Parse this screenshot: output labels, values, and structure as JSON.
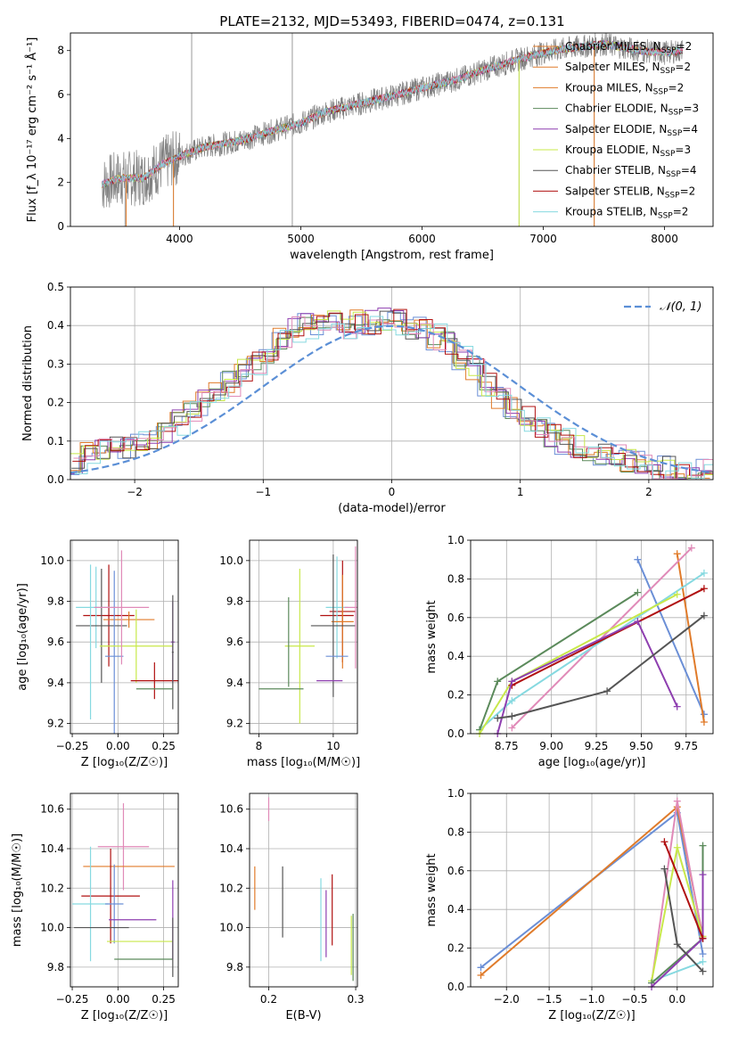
{
  "page_title": "PLATE=2132, MJD=53493, FIBERID=0474, z=0.131",
  "colors": {
    "gray": "#808080",
    "orange": "#e07b2a",
    "blue": "#6b8fd6",
    "green": "#5b8a5b",
    "purple": "#8e3fb0",
    "yellow": "#c8e84a",
    "dark": "#555555",
    "red": "#b01010",
    "cyan": "#86d9e0",
    "pink": "#e08ab8",
    "dashed": "#5b8fd6"
  },
  "chart_data": [
    {
      "id": "spectrum",
      "type": "line",
      "title": "PLATE=2132, MJD=53493, FIBERID=0474, z=0.131",
      "xlabel": "wavelength [Angstrom, rest frame]",
      "ylabel": "Flux [f_λ 10⁻¹⁷ erg cm⁻² s⁻¹ Å⁻¹]",
      "xlim": [
        3100,
        8400
      ],
      "ylim": [
        0,
        8.8
      ],
      "xticks": [
        "4000",
        "5000",
        "6000",
        "7000",
        "8000"
      ],
      "yticks": [
        "0",
        "2",
        "4",
        "6",
        "8"
      ],
      "grid": false,
      "legend_position": "top-right",
      "legend": [
        {
          "label": "Chabrier MILES, N",
          "sub": "SSP",
          "tail": "=2",
          "color": "orange"
        },
        {
          "label": "Salpeter MILES, N",
          "sub": "SSP",
          "tail": "=2",
          "color": "orange"
        },
        {
          "label": "Kroupa MILES, N",
          "sub": "SSP",
          "tail": "=2",
          "color": "orange"
        },
        {
          "label": "Chabrier ELODIE, N",
          "sub": "SSP",
          "tail": "=3",
          "color": "green"
        },
        {
          "label": "Salpeter ELODIE, N",
          "sub": "SSP",
          "tail": "=4",
          "color": "purple"
        },
        {
          "label": "Kroupa ELODIE, N",
          "sub": "SSP",
          "tail": "=3",
          "color": "yellow"
        },
        {
          "label": "Chabrier STELIB, N",
          "sub": "SSP",
          "tail": "=4",
          "color": "dark"
        },
        {
          "label": "Salpeter STELIB, N",
          "sub": "SSP",
          "tail": "=2",
          "color": "red"
        },
        {
          "label": "Kroupa STELIB, N",
          "sub": "SSP",
          "tail": "=2",
          "color": "cyan"
        }
      ],
      "continuum": [
        [
          3360,
          1.9
        ],
        [
          3500,
          2.2
        ],
        [
          3700,
          2.2
        ],
        [
          3850,
          2.8
        ],
        [
          4000,
          3.2
        ],
        [
          4200,
          3.6
        ],
        [
          4500,
          3.9
        ],
        [
          4800,
          4.4
        ],
        [
          5000,
          4.7
        ],
        [
          5200,
          5.2
        ],
        [
          5500,
          5.6
        ],
        [
          5800,
          6.0
        ],
        [
          6000,
          6.3
        ],
        [
          6300,
          6.7
        ],
        [
          6500,
          7.1
        ],
        [
          6800,
          7.6
        ],
        [
          7000,
          7.9
        ],
        [
          7200,
          8.1
        ],
        [
          7500,
          8.3
        ],
        [
          7800,
          8.0
        ],
        [
          8000,
          7.9
        ],
        [
          8150,
          8.0
        ]
      ],
      "spikes": [
        [
          4100,
          8.8
        ],
        [
          4930,
          8.8
        ],
        [
          3550,
          0.0
        ],
        [
          3950,
          0.0
        ],
        [
          4930,
          0.0
        ],
        [
          6800,
          0.0
        ],
        [
          7420,
          0.0
        ]
      ]
    },
    {
      "id": "residuals",
      "type": "line",
      "xlabel": "(data-model)/error",
      "ylabel": "Normed distribution",
      "xlim": [
        -2.5,
        2.5
      ],
      "ylim": [
        0,
        0.5
      ],
      "xticks": [
        "−2",
        "−1",
        "0",
        "1",
        "2"
      ],
      "yticks": [
        "0.0",
        "0.1",
        "0.2",
        "0.3",
        "0.4",
        "0.5"
      ],
      "grid": true,
      "legend_position": "top-right",
      "legend_label": "𝒩(0, 1)",
      "histogram_hint": [
        0.04,
        0.07,
        0.08,
        0.08,
        0.09,
        0.09,
        0.1,
        0.12,
        0.15,
        0.17,
        0.2,
        0.23,
        0.25,
        0.28,
        0.3,
        0.33,
        0.36,
        0.39,
        0.4,
        0.4,
        0.41,
        0.4,
        0.41,
        0.41,
        0.42,
        0.41,
        0.4,
        0.39,
        0.37,
        0.35,
        0.32,
        0.29,
        0.25,
        0.22,
        0.19,
        0.16,
        0.14,
        0.12,
        0.1,
        0.09,
        0.07,
        0.07,
        0.06,
        0.05,
        0.04,
        0.03,
        0.03,
        0.02,
        0.02,
        0.02
      ]
    },
    {
      "id": "age_vs_Z",
      "type": "scatter",
      "xlabel": "Z [log₁₀(Z/Z☉)]",
      "ylabel": "age  [log₁₀(age/yr)]",
      "xlim": [
        -0.26,
        0.33
      ],
      "ylim": [
        9.15,
        10.1
      ],
      "xticks": [
        "−0.25",
        "0.00",
        "0.25"
      ],
      "yticks": [
        "9.2",
        "9.4",
        "9.6",
        "9.8",
        "10.0"
      ],
      "grid": true,
      "points": [
        {
          "x": -0.05,
          "y": 9.73,
          "xerr": 0.14,
          "yerr": 0.25,
          "color": "red"
        },
        {
          "x": -0.12,
          "y": 9.77,
          "xerr": 0.11,
          "yerr": 0.2,
          "color": "cyan"
        },
        {
          "x": 0.06,
          "y": 9.71,
          "xerr": 0.14,
          "yerr": 0.04,
          "color": "orange"
        },
        {
          "x": -0.09,
          "y": 9.68,
          "xerr": 0.14,
          "yerr": 0.28,
          "color": "dark"
        },
        {
          "x": -0.02,
          "y": 9.53,
          "xerr": 0.05,
          "yerr": 0.42,
          "color": "blue"
        },
        {
          "x": 0.1,
          "y": 9.58,
          "xerr": 0.2,
          "yerr": 0.18,
          "color": "yellow"
        },
        {
          "x": 0.2,
          "y": 9.41,
          "xerr": 0.13,
          "yerr": 0.09,
          "color": "red"
        },
        {
          "x": 0.3,
          "y": 9.6,
          "xerr": 0.01,
          "yerr": 0.2,
          "color": "purple"
        },
        {
          "x": 0.3,
          "y": 9.55,
          "xerr": 0.005,
          "yerr": 0.28,
          "color": "dark"
        },
        {
          "x": 0.2,
          "y": 9.37,
          "xerr": 0.1,
          "yerr": 0.0,
          "color": "green"
        },
        {
          "x": 0.02,
          "y": 9.77,
          "xerr": 0.15,
          "yerr": 0.28,
          "color": "pink"
        },
        {
          "x": -0.15,
          "y": 9.6,
          "xerr": 0.0,
          "yerr": 0.38,
          "color": "cyan"
        }
      ]
    },
    {
      "id": "age_vs_mass",
      "type": "scatter",
      "xlabel": "mass [log₁₀(M/M☉)]",
      "ylabel": "",
      "xlim": [
        7.75,
        10.65
      ],
      "ylim": [
        9.15,
        10.1
      ],
      "xticks": [
        "8",
        "10"
      ],
      "yticks": [
        "9.2",
        "9.4",
        "9.6",
        "9.8",
        "10.0"
      ],
      "grid": true,
      "points": [
        {
          "x": 10.1,
          "y": 9.73,
          "xerr": 0.45,
          "yerr": 0.0,
          "color": "red"
        },
        {
          "x": 10.25,
          "y": 9.75,
          "xerr": 0.35,
          "yerr": 0.25,
          "color": "red"
        },
        {
          "x": 10.1,
          "y": 9.77,
          "xerr": 0.3,
          "yerr": 0.25,
          "color": "cyan"
        },
        {
          "x": 10.25,
          "y": 9.7,
          "xerr": 0.3,
          "yerr": 0.23,
          "color": "orange"
        },
        {
          "x": 10.0,
          "y": 9.68,
          "xerr": 0.6,
          "yerr": 0.35,
          "color": "dark"
        },
        {
          "x": 10.1,
          "y": 9.53,
          "xerr": 0.3,
          "yerr": 0.0,
          "color": "blue"
        },
        {
          "x": 9.1,
          "y": 9.58,
          "xerr": 0.4,
          "yerr": 0.38,
          "color": "yellow"
        },
        {
          "x": 9.9,
          "y": 9.41,
          "xerr": 0.35,
          "yerr": 0.0,
          "color": "purple"
        },
        {
          "x": 8.6,
          "y": 9.37,
          "xerr": 0.6,
          "yerr": 0.0,
          "color": "green"
        },
        {
          "x": 8.8,
          "y": 9.6,
          "xerr": 0.0,
          "yerr": 0.22,
          "color": "green"
        },
        {
          "x": 10.6,
          "y": 9.77,
          "xerr": 0.3,
          "yerr": 0.3,
          "color": "pink"
        }
      ]
    },
    {
      "id": "massweight_vs_age",
      "type": "line",
      "xlabel": "age  [log₁₀(age/yr)]",
      "ylabel": "mass weight",
      "xlim": [
        8.55,
        9.9
      ],
      "ylim": [
        0,
        1.0
      ],
      "xticks": [
        "8.75",
        "9.00",
        "9.25",
        "9.50",
        "9.75"
      ],
      "yticks": [
        "0.0",
        "0.2",
        "0.4",
        "0.6",
        "0.8",
        "1.0"
      ],
      "grid": true,
      "series": [
        {
          "color": "blue",
          "x": [
            9.48,
            9.85
          ],
          "y": [
            0.9,
            0.1
          ]
        },
        {
          "color": "orange",
          "x": [
            9.7,
            9.85
          ],
          "y": [
            0.93,
            0.06
          ]
        },
        {
          "color": "pink",
          "x": [
            8.78,
            9.78
          ],
          "y": [
            0.03,
            0.96
          ]
        },
        {
          "color": "cyan",
          "x": [
            8.6,
            8.78,
            9.85
          ],
          "y": [
            0.02,
            0.17,
            0.83
          ]
        },
        {
          "color": "green",
          "x": [
            8.6,
            8.7,
            9.48
          ],
          "y": [
            0.02,
            0.27,
            0.73
          ]
        },
        {
          "color": "yellow",
          "x": [
            8.6,
            8.78,
            9.7
          ],
          "y": [
            0.0,
            0.27,
            0.72
          ]
        },
        {
          "color": "red",
          "x": [
            8.78,
            9.85
          ],
          "y": [
            0.25,
            0.75
          ]
        },
        {
          "color": "purple",
          "x": [
            8.7,
            8.78,
            9.48,
            9.7
          ],
          "y": [
            0.0,
            0.27,
            0.58,
            0.14
          ]
        },
        {
          "color": "dark",
          "x": [
            8.7,
            8.78,
            9.31,
            9.85
          ],
          "y": [
            0.08,
            0.09,
            0.22,
            0.61
          ]
        }
      ]
    },
    {
      "id": "mass_vs_Z",
      "type": "scatter",
      "xlabel": "Z [log₁₀(Z/Z☉)]",
      "ylabel": "mass [log₁₀(M/M☉)]",
      "xlim": [
        -0.26,
        0.33
      ],
      "ylim": [
        9.7,
        10.68
      ],
      "xticks": [
        "−0.25",
        "0.00",
        "0.25"
      ],
      "yticks": [
        "9.8",
        "10.0",
        "10.2",
        "10.4",
        "10.6"
      ],
      "grid": true,
      "points": [
        {
          "x": 0.03,
          "y": 10.41,
          "xerr": 0.14,
          "yerr": 0.22,
          "color": "pink"
        },
        {
          "x": 0.06,
          "y": 10.31,
          "xerr": 0.25,
          "yerr": 0.0,
          "color": "orange"
        },
        {
          "x": -0.04,
          "y": 10.16,
          "xerr": 0.16,
          "yerr": 0.24,
          "color": "red"
        },
        {
          "x": -0.15,
          "y": 10.12,
          "xerr": 0.1,
          "yerr": 0.29,
          "color": "cyan"
        },
        {
          "x": -0.02,
          "y": 10.12,
          "xerr": 0.05,
          "yerr": 0.2,
          "color": "blue"
        },
        {
          "x": 0.08,
          "y": 10.04,
          "xerr": 0.13,
          "yerr": 0.0,
          "color": "purple"
        },
        {
          "x": -0.09,
          "y": 10.0,
          "xerr": 0.15,
          "yerr": 0.0,
          "color": "dark"
        },
        {
          "x": 0.12,
          "y": 9.93,
          "xerr": 0.18,
          "yerr": 0.0,
          "color": "yellow"
        },
        {
          "x": 0.14,
          "y": 9.84,
          "xerr": 0.16,
          "yerr": 0.0,
          "color": "green"
        },
        {
          "x": 0.3,
          "y": 10.04,
          "xerr": 0.0,
          "yerr": 0.2,
          "color": "purple"
        },
        {
          "x": 0.3,
          "y": 9.9,
          "xerr": 0.0,
          "yerr": 0.15,
          "color": "dark"
        }
      ]
    },
    {
      "id": "mass_vs_ebv",
      "type": "scatter",
      "xlabel": "E(B-V)",
      "ylabel": "",
      "xlim": [
        0.178,
        0.302
      ],
      "ylim": [
        9.7,
        10.68
      ],
      "xticks": [
        "0.2",
        "0.3"
      ],
      "yticks": [
        "9.8",
        "10.0",
        "10.2",
        "10.4",
        "10.6"
      ],
      "grid": true,
      "points": [
        {
          "x": 0.2,
          "y": 10.6,
          "xerr": 0.0,
          "yerr": 0.06,
          "color": "pink"
        },
        {
          "x": 0.184,
          "y": 10.2,
          "xerr": 0.0,
          "yerr": 0.11,
          "color": "orange"
        },
        {
          "x": 0.216,
          "y": 10.13,
          "xerr": 0.0,
          "yerr": 0.18,
          "color": "dark"
        },
        {
          "x": 0.26,
          "y": 10.04,
          "xerr": 0.0,
          "yerr": 0.21,
          "color": "cyan"
        },
        {
          "x": 0.266,
          "y": 10.02,
          "xerr": 0.0,
          "yerr": 0.17,
          "color": "purple"
        },
        {
          "x": 0.273,
          "y": 10.09,
          "xerr": 0.0,
          "yerr": 0.18,
          "color": "red"
        },
        {
          "x": 0.295,
          "y": 9.91,
          "xerr": 0.0,
          "yerr": 0.15,
          "color": "yellow"
        },
        {
          "x": 0.297,
          "y": 9.9,
          "xerr": 0.0,
          "yerr": 0.17,
          "color": "green"
        }
      ]
    },
    {
      "id": "massweight_vs_Z",
      "type": "line",
      "xlabel": "Z [log₁₀(Z/Z☉)]",
      "ylabel": "mass weight",
      "xlim": [
        -2.42,
        0.42
      ],
      "ylim": [
        0,
        1.0
      ],
      "xticks": [
        "−2.0",
        "−1.5",
        "−1.0",
        "−0.5",
        "0.0"
      ],
      "yticks": [
        "0.0",
        "0.2",
        "0.4",
        "0.6",
        "0.8",
        "1.0"
      ],
      "grid": true,
      "series": [
        {
          "color": "blue",
          "x": [
            -2.3,
            0.0,
            0.3
          ],
          "y": [
            0.1,
            0.9,
            0.17
          ]
        },
        {
          "color": "orange",
          "x": [
            -2.3,
            0.0,
            0.3
          ],
          "y": [
            0.06,
            0.93,
            0.26
          ]
        },
        {
          "color": "pink",
          "x": [
            -0.3,
            0.0,
            0.3
          ],
          "y": [
            0.02,
            0.96,
            0.25
          ]
        },
        {
          "color": "cyan",
          "x": [
            -0.3,
            0.3
          ],
          "y": [
            0.03,
            0.13
          ]
        },
        {
          "color": "yellow",
          "x": [
            -0.3,
            0.0,
            0.3
          ],
          "y": [
            0.03,
            0.72,
            0.26
          ]
        },
        {
          "color": "green",
          "x": [
            -0.3,
            0.3,
            0.3
          ],
          "y": [
            0.02,
            0.25,
            0.73
          ]
        },
        {
          "color": "purple",
          "x": [
            -0.3,
            0.3,
            0.3
          ],
          "y": [
            0.0,
            0.25,
            0.58
          ]
        },
        {
          "color": "red",
          "x": [
            -0.15,
            0.3
          ],
          "y": [
            0.75,
            0.25
          ]
        },
        {
          "color": "dark",
          "x": [
            -0.15,
            0.0,
            0.3
          ],
          "y": [
            0.61,
            0.22,
            0.08
          ]
        }
      ]
    }
  ]
}
